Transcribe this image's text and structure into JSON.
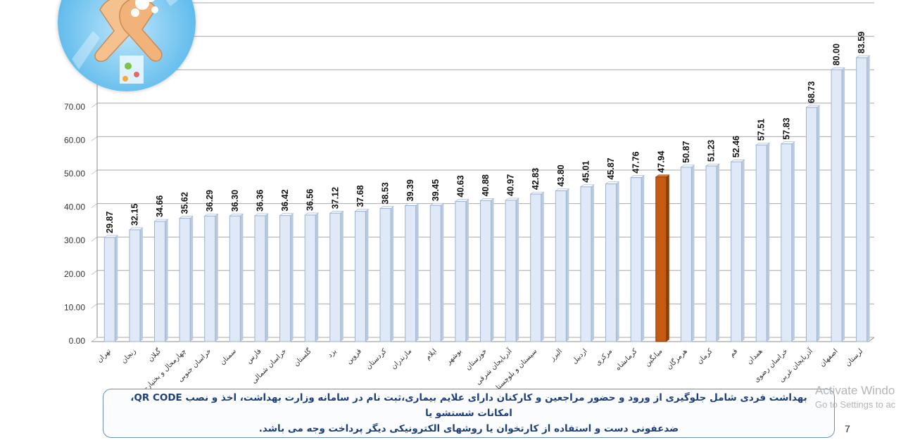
{
  "chart_data": {
    "type": "bar",
    "categories": [
      "تهران",
      "زنجان",
      "گیلان",
      "چهارمحال و بختیاری",
      "خراسان جنوبی",
      "سمنان",
      "فارس",
      "خراسان شمالی",
      "گلستان",
      "یزد",
      "قزوین",
      "کردستان",
      "مازندران",
      "ایلام",
      "بوشهر",
      "خوزستان",
      "آذربایجان شرقی",
      "سیستان و بلوچستان",
      "البرز",
      "اردبیل",
      "مرکزی",
      "کرمانشاه",
      "میانگین",
      "هرمزگان",
      "کرمان",
      "قم",
      "همدان",
      "خراسان رضوی",
      "آذربایجان غربی",
      "اصفهان",
      "لرستان"
    ],
    "values": [
      29.87,
      32.15,
      34.66,
      35.62,
      36.29,
      36.3,
      36.36,
      36.42,
      36.56,
      37.12,
      37.68,
      38.53,
      39.39,
      39.45,
      40.63,
      40.88,
      40.97,
      42.83,
      43.8,
      45.01,
      45.87,
      47.76,
      47.94,
      50.87,
      51.23,
      52.46,
      57.51,
      57.83,
      68.73,
      80.0,
      83.59
    ],
    "value_labels": [
      "29.87",
      "32.15",
      "34.66",
      "35.62",
      "36.29",
      "36.30",
      "36.36",
      "36.42",
      "36.56",
      "37.12",
      "37.68",
      "38.53",
      "39.39",
      "39.45",
      "40.63",
      "40.88",
      "40.97",
      "42.83",
      "43.80",
      "45.01",
      "45.87",
      "47.76",
      "47.94",
      "50.87",
      "51.23",
      "52.46",
      "57.51",
      "57.83",
      "68.73",
      "80.00",
      "83.59"
    ],
    "highlight_category": "میانگین",
    "ylim": [
      0,
      100
    ],
    "y_ticks": [
      "0.00",
      "10.00",
      "20.00",
      "30.00",
      "40.00",
      "50.00",
      "60.00",
      "70.00"
    ],
    "grid": true,
    "bar_color": "#dfe9f8",
    "bar_edge_color": "#9fb3cf",
    "highlight_color": "#c55a11",
    "title": "",
    "xlabel": "",
    "ylabel": ""
  },
  "caption": {
    "line1": "بهداشت فردی شامل جلوگیری از ورود و حضور مراجعین و کارکنان دارای علایم بیماری،ثبت نام در سامانه وزارت بهداشت، اخذ و نصب QR CODE، امکانات شستشو یا",
    "line2": "ضدعفونی دست و استفاده از کارتخوان یا روشهای الکترونیکی دیگر پرداخت وجه می باشد."
  },
  "logo": {
    "icon": "handwashing-icon"
  },
  "watermark": {
    "line1": "Activate Windo",
    "line2": "Go to Settings to ac"
  },
  "page_number": "7"
}
